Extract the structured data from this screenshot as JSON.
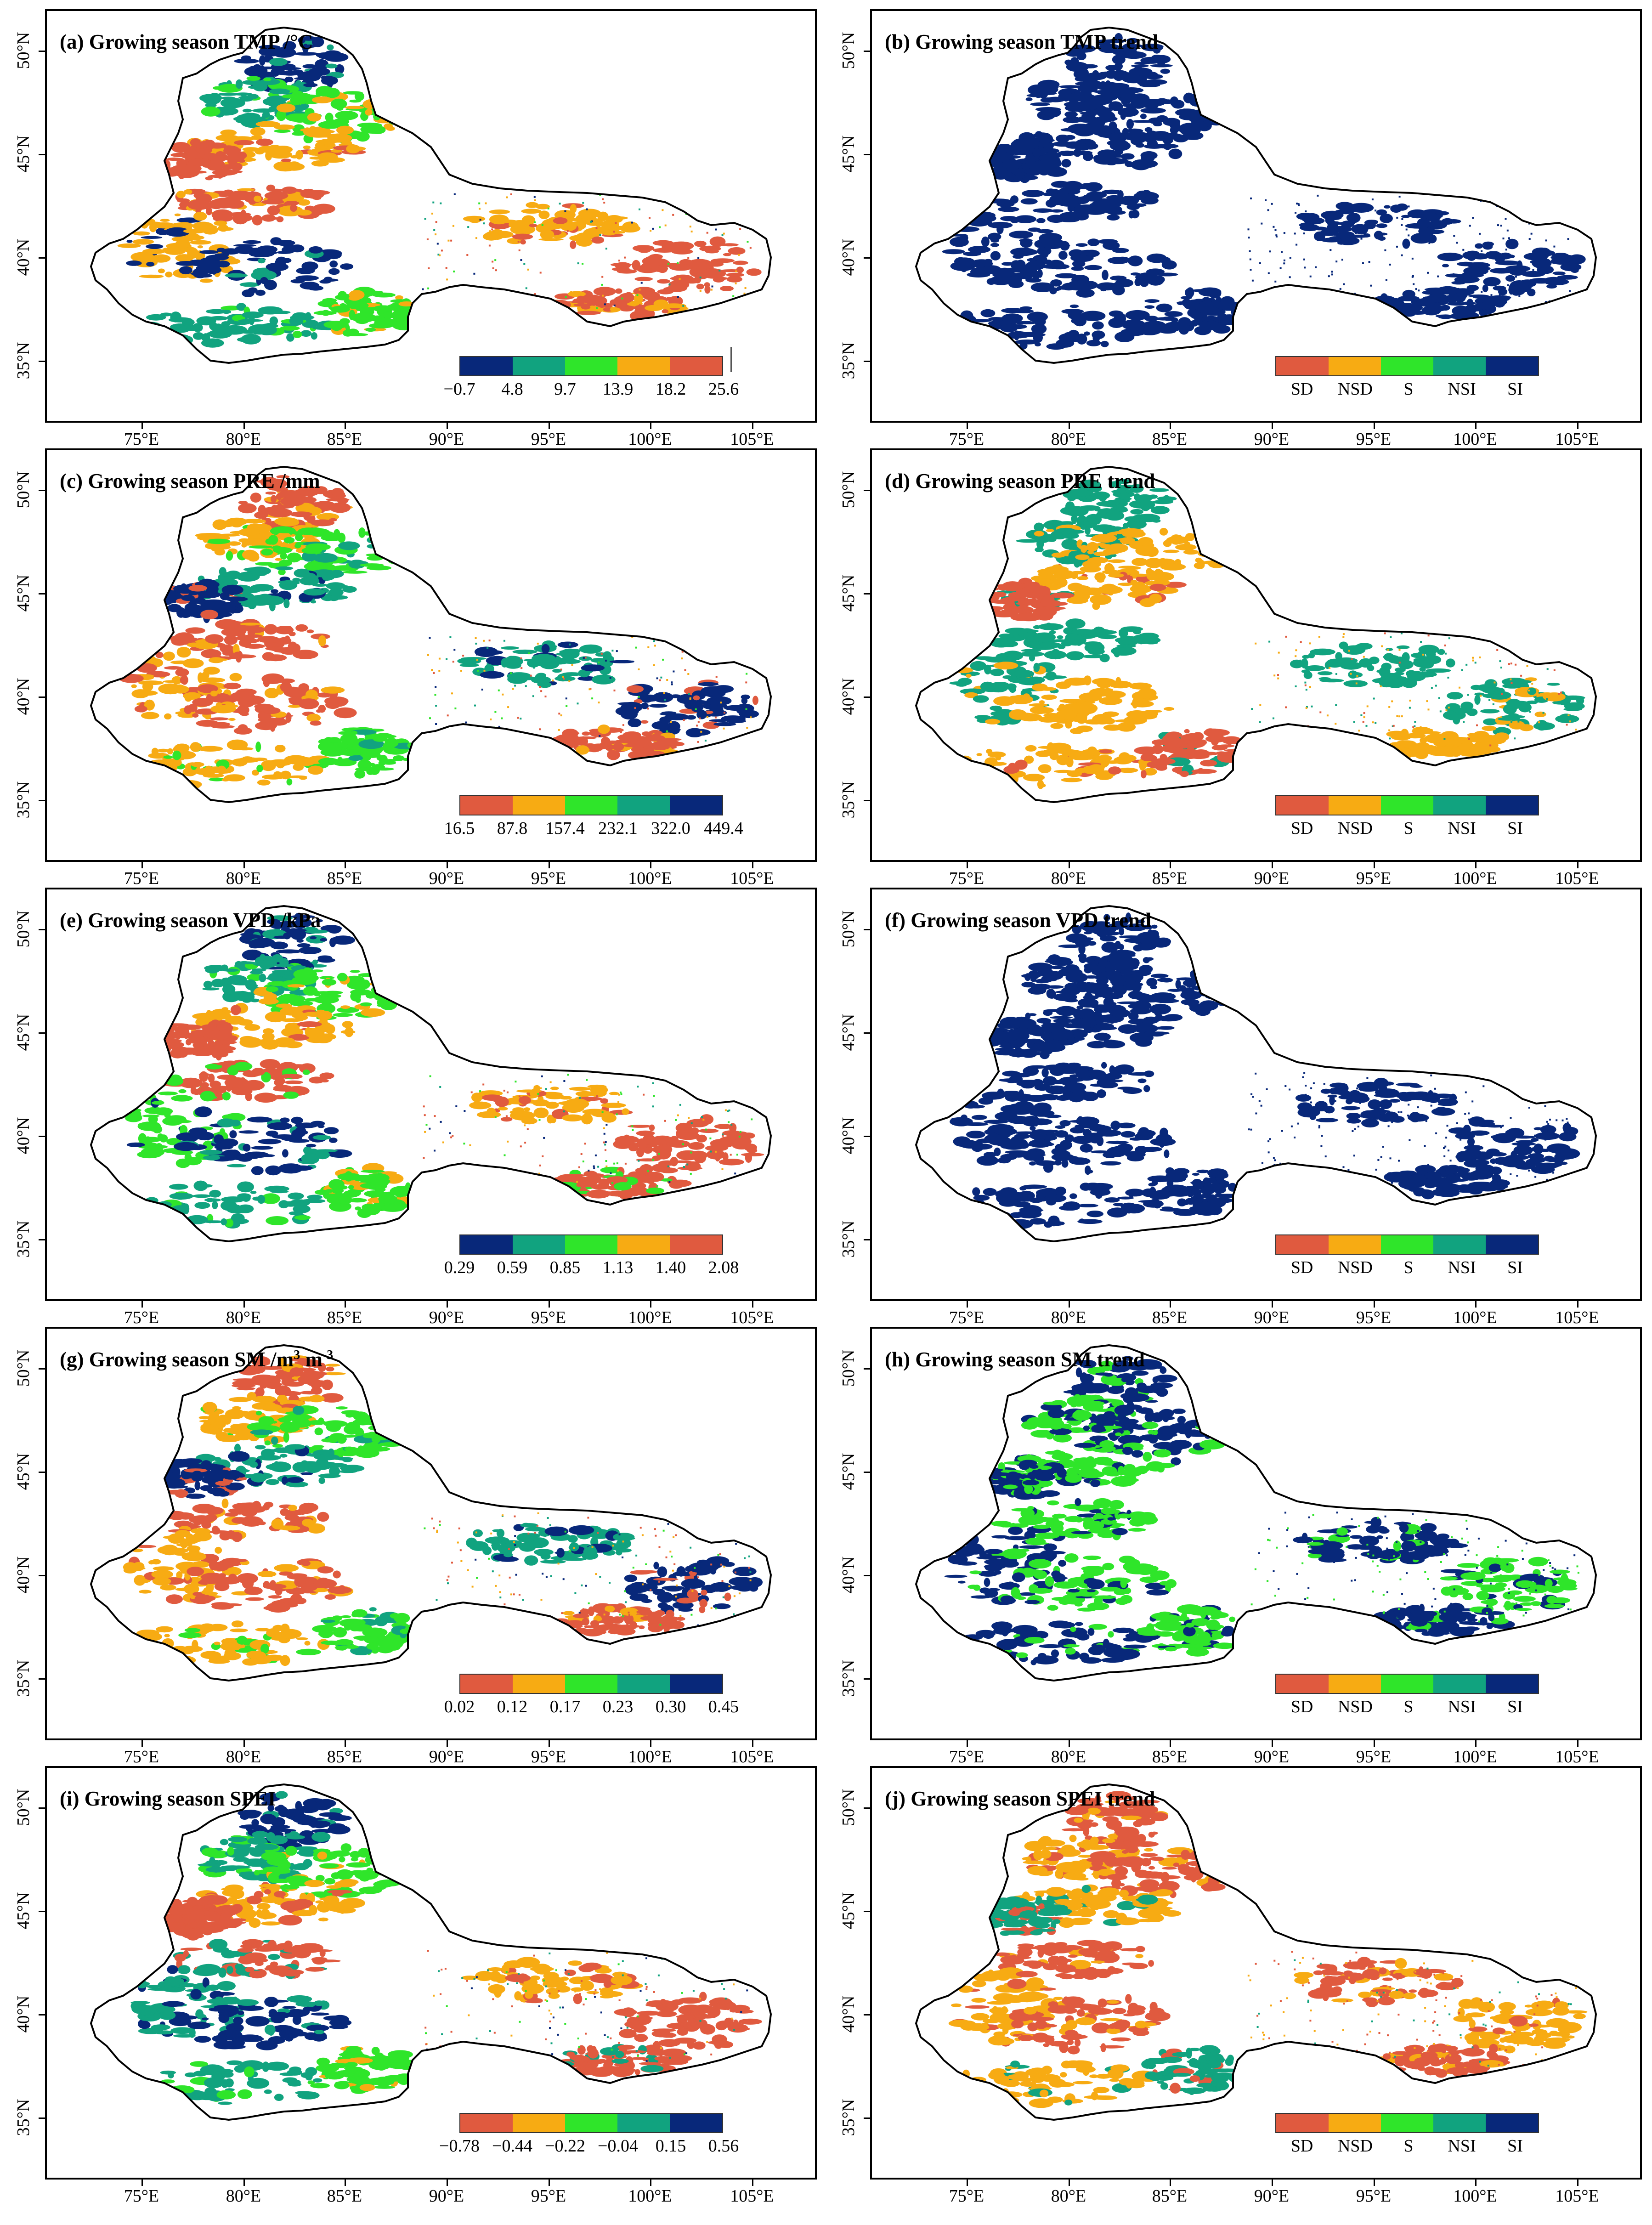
{
  "colors": {
    "red": "#e05a3f",
    "orange": "#f7ab13",
    "green": "#2fe52a",
    "teal": "#11a37f",
    "navy": "#08287a",
    "outline": "#000000"
  },
  "axes": {
    "x_ticks": [
      "75°E",
      "80°E",
      "85°E",
      "90°E",
      "95°E",
      "100°E",
      "105°E"
    ],
    "y_ticks": [
      "50°N",
      "45°N",
      "40°N",
      "35°N"
    ]
  },
  "panels": [
    {
      "id": "a",
      "title": "(a) Growing season TMP /°C",
      "kind": "value",
      "legend_colors": [
        "#08287a",
        "#11a37f",
        "#2fe52a",
        "#f7ab13",
        "#e05a3f"
      ],
      "legend_labels": [
        "−0.7",
        "4.8",
        "9.7",
        "13.9",
        "18.2",
        "25.6"
      ],
      "palette": [
        "#08287a",
        "#11a37f",
        "#2fe52a",
        "#f7ab13",
        "#e05a3f",
        "#e05a3f",
        "#f7ab13"
      ]
    },
    {
      "id": "b",
      "title": "(b) Growing season TMP trend",
      "kind": "trend",
      "legend_colors": [
        "#e05a3f",
        "#f7ab13",
        "#2fe52a",
        "#11a37f",
        "#08287a"
      ],
      "legend_labels": [
        "SD",
        "NSD",
        "S",
        "NSI",
        "SI"
      ],
      "palette": [
        "#08287a",
        "#08287a",
        "#08287a",
        "#08287a"
      ]
    },
    {
      "id": "c",
      "title": "(c) Growing season PRE /mm",
      "kind": "value",
      "legend_colors": [
        "#e05a3f",
        "#f7ab13",
        "#2fe52a",
        "#11a37f",
        "#08287a"
      ],
      "legend_labels": [
        "16.5",
        "87.8",
        "157.4",
        "232.1",
        "322.0",
        "449.4"
      ],
      "palette": [
        "#e05a3f",
        "#f7ab13",
        "#2fe52a",
        "#11a37f",
        "#08287a",
        "#e05a3f",
        "#f7ab13"
      ]
    },
    {
      "id": "d",
      "title": "(d) Growing season PRE trend",
      "kind": "trend",
      "legend_colors": [
        "#e05a3f",
        "#f7ab13",
        "#2fe52a",
        "#11a37f",
        "#08287a"
      ],
      "legend_labels": [
        "SD",
        "NSD",
        "S",
        "NSI",
        "SI"
      ],
      "palette": [
        "#11a37f",
        "#11a37f",
        "#f7ab13",
        "#f7ab13",
        "#e05a3f"
      ]
    },
    {
      "id": "e",
      "title": "(e) Growing season VPD /kPa",
      "kind": "value",
      "legend_colors": [
        "#08287a",
        "#11a37f",
        "#2fe52a",
        "#f7ab13",
        "#e05a3f"
      ],
      "legend_labels": [
        "0.29",
        "0.59",
        "0.85",
        "1.13",
        "1.40",
        "2.08"
      ],
      "palette": [
        "#08287a",
        "#11a37f",
        "#2fe52a",
        "#f7ab13",
        "#e05a3f",
        "#e05a3f",
        "#2fe52a"
      ]
    },
    {
      "id": "f",
      "title": "(f) Growing season VPD trend",
      "kind": "trend",
      "legend_colors": [
        "#e05a3f",
        "#f7ab13",
        "#2fe52a",
        "#11a37f",
        "#08287a"
      ],
      "legend_labels": [
        "SD",
        "NSD",
        "S",
        "NSI",
        "SI"
      ],
      "palette": [
        "#08287a",
        "#08287a",
        "#08287a",
        "#08287a"
      ]
    },
    {
      "id": "g",
      "title": "(g) Growing season SM /m",
      "title_unit": "3",
      "title_suffix": " m",
      "title_unit2": "-3",
      "kind": "value",
      "legend_colors": [
        "#e05a3f",
        "#f7ab13",
        "#2fe52a",
        "#11a37f",
        "#08287a"
      ],
      "legend_labels": [
        "0.02",
        "0.12",
        "0.17",
        "0.23",
        "0.30",
        "0.45"
      ],
      "palette": [
        "#e05a3f",
        "#f7ab13",
        "#2fe52a",
        "#11a37f",
        "#08287a",
        "#e05a3f",
        "#f7ab13"
      ]
    },
    {
      "id": "h",
      "title": "(h) Growing season SM trend",
      "kind": "trend",
      "legend_colors": [
        "#e05a3f",
        "#f7ab13",
        "#2fe52a",
        "#11a37f",
        "#08287a"
      ],
      "legend_labels": [
        "SD",
        "NSD",
        "S",
        "NSI",
        "SI"
      ],
      "palette": [
        "#08287a",
        "#2fe52a",
        "#08287a",
        "#2fe52a"
      ]
    },
    {
      "id": "i",
      "title": "(i) Growing season SPEI",
      "kind": "value",
      "legend_colors": [
        "#e05a3f",
        "#f7ab13",
        "#2fe52a",
        "#11a37f",
        "#08287a"
      ],
      "legend_labels": [
        "−0.78",
        "−0.44",
        "−0.22",
        "−0.04",
        "0.15",
        "0.56"
      ],
      "palette": [
        "#08287a",
        "#11a37f",
        "#2fe52a",
        "#f7ab13",
        "#e05a3f",
        "#e05a3f",
        "#11a37f"
      ]
    },
    {
      "id": "j",
      "title": "(j) Growing season SPEI trend",
      "kind": "trend",
      "legend_colors": [
        "#e05a3f",
        "#f7ab13",
        "#2fe52a",
        "#11a37f",
        "#08287a"
      ],
      "legend_labels": [
        "SD",
        "NSD",
        "S",
        "NSI",
        "SI"
      ],
      "palette": [
        "#e05a3f",
        "#f7ab13",
        "#e05a3f",
        "#f7ab13",
        "#11a37f"
      ]
    }
  ]
}
